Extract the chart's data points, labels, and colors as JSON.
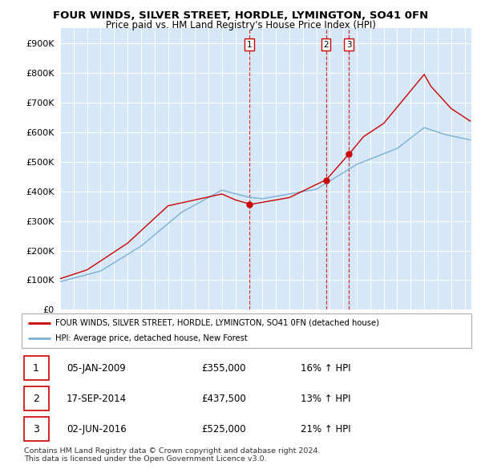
{
  "title": "FOUR WINDS, SILVER STREET, HORDLE, LYMINGTON, SO41 0FN",
  "subtitle": "Price paid vs. HM Land Registry's House Price Index (HPI)",
  "ylabel_ticks": [
    "£0",
    "£100K",
    "£200K",
    "£300K",
    "£400K",
    "£500K",
    "£600K",
    "£700K",
    "£800K",
    "£900K"
  ],
  "ytick_values": [
    0,
    100000,
    200000,
    300000,
    400000,
    500000,
    600000,
    700000,
    800000,
    900000
  ],
  "ylim": [
    0,
    950000
  ],
  "sale_times": [
    2009.014,
    2014.712,
    2016.418
  ],
  "sale_prices": [
    355000,
    437500,
    525000
  ],
  "sale_labels": [
    "1",
    "2",
    "3"
  ],
  "sale_date_strs": [
    "05-JAN-2009",
    "17-SEP-2014",
    "02-JUN-2016"
  ],
  "sale_price_strs": [
    "£355,000",
    "£437,500",
    "£525,000"
  ],
  "sale_hpi_strs": [
    "16% ↑ HPI",
    "13% ↑ HPI",
    "21% ↑ HPI"
  ],
  "line1_label": "FOUR WINDS, SILVER STREET, HORDLE, LYMINGTON, SO41 0FN (detached house)",
  "line2_label": "HPI: Average price, detached house, New Forest",
  "line1_color": "#cc0000",
  "line2_color": "#7bafd4",
  "vline_color": "#cc0000",
  "bg_color": "#d6e8f7",
  "footer": "Contains HM Land Registry data © Crown copyright and database right 2024.\nThis data is licensed under the Open Government Licence v3.0."
}
